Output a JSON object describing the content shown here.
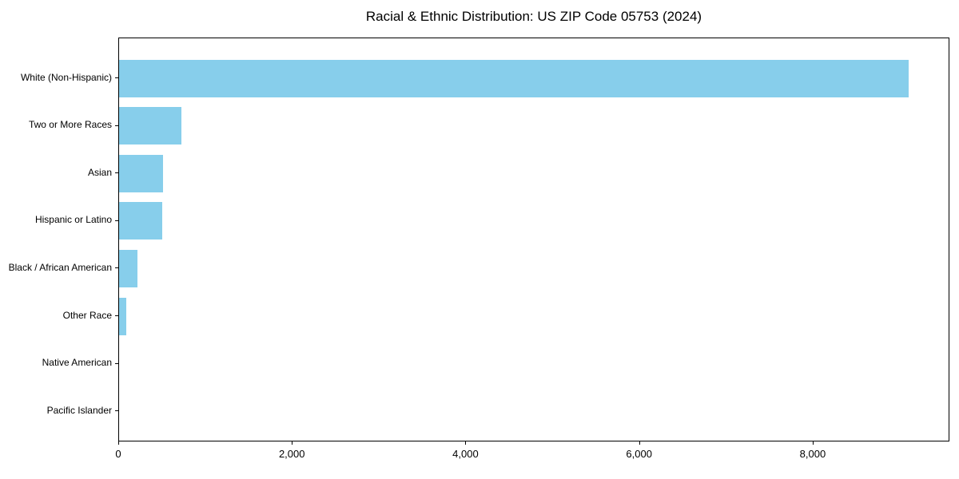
{
  "title": "Racial & Ethnic Distribution: US ZIP Code 05753 (2024)",
  "chart_data": {
    "type": "bar",
    "orientation": "horizontal",
    "title": "Racial & Ethnic Distribution: US ZIP Code 05753 (2024)",
    "xlabel": "",
    "ylabel": "",
    "categories": [
      "White (Non-Hispanic)",
      "Two or More Races",
      "Asian",
      "Hispanic or Latino",
      "Black / African American",
      "Other Race",
      "Native American",
      "Pacific Islander"
    ],
    "values": [
      9100,
      720,
      510,
      495,
      210,
      80,
      0,
      0
    ],
    "xlim": [
      0,
      9575
    ],
    "x_ticks": [
      0,
      2000,
      4000,
      6000,
      8000
    ],
    "x_tick_labels": [
      "0",
      "2,000",
      "4,000",
      "6,000",
      "8,000"
    ],
    "bar_color": "#87CEEB",
    "grid": false,
    "legend": null
  }
}
